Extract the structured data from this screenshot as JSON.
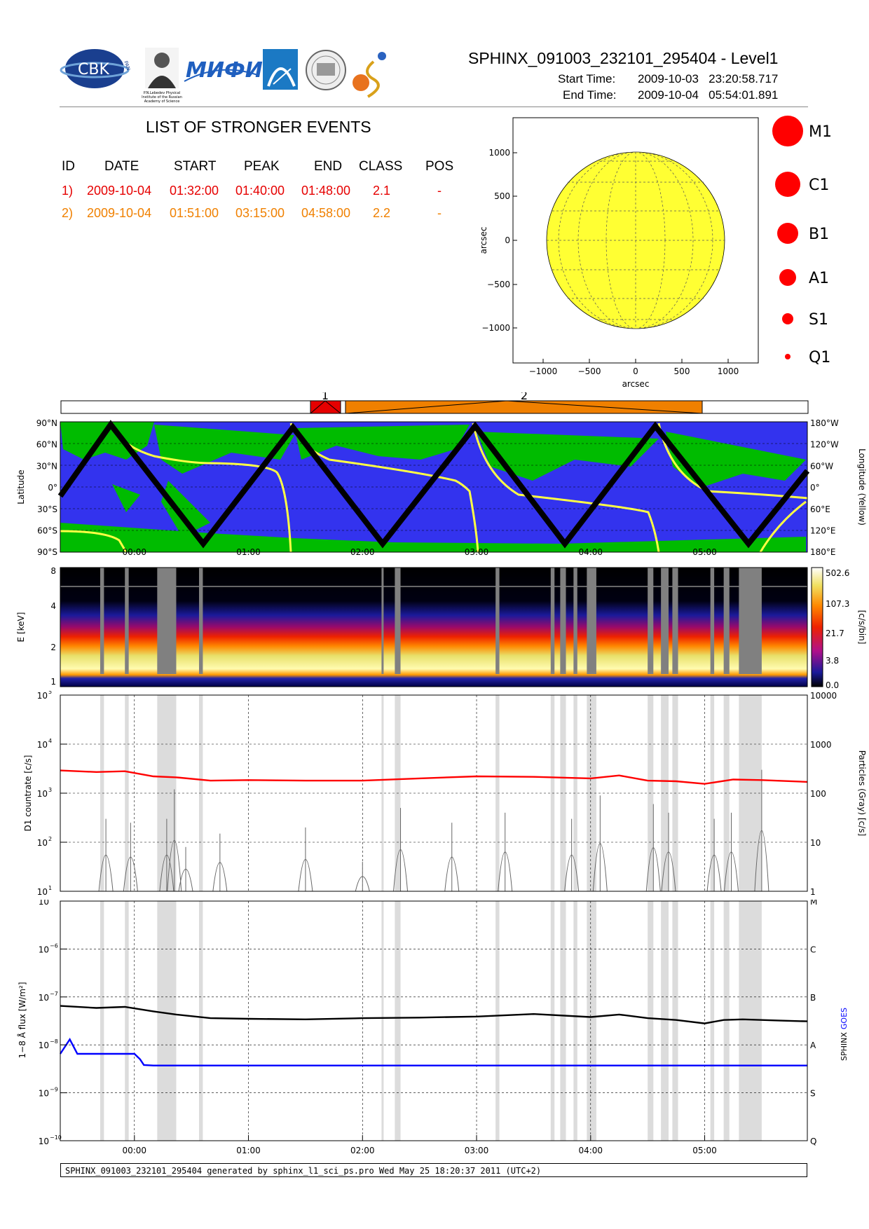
{
  "header": {
    "title": "SPHINX_091003_232101_295404 - Level1",
    "start_label": "Start Time:",
    "start_value": "2009-10-03   23:20:58.717",
    "end_label": "End Time:",
    "end_value": "2009-10-04   05:54:01.891"
  },
  "logos": {
    "cbk_text": "CBK",
    "cbk_sub": "PAN",
    "lebedev_caption": "P.N.Lebedev Physical Institute of the Russian Academy of Science",
    "mifi_text": "МИФИ"
  },
  "events": {
    "title": "LIST OF STRONGER EVENTS",
    "columns": [
      "ID",
      "DATE",
      "START",
      "PEAK",
      "END",
      "CLASS",
      "POS"
    ],
    "rows": [
      {
        "id": "1)",
        "date": "2009-10-04",
        "start": "01:32:00",
        "peak": "01:40:00",
        "end": "01:48:00",
        "class": "2.1",
        "pos": "-",
        "color": "#e60000"
      },
      {
        "id": "2)",
        "date": "2009-10-04",
        "start": "01:51:00",
        "peak": "03:15:00",
        "end": "04:58:00",
        "class": "2.2",
        "pos": "-",
        "color": "#f08000"
      }
    ]
  },
  "sun_map": {
    "xlabel": "arcsec",
    "ylabel": "arcsec",
    "xticks": [
      "−1000",
      "−500",
      "0",
      "500",
      "1000"
    ],
    "yticks": [
      "1000",
      "500",
      "0",
      "−500",
      "−1000"
    ],
    "disk_color": "#ffff33"
  },
  "size_legend": {
    "items": [
      "M1",
      "C1",
      "B1",
      "A1",
      "S1",
      "Q1"
    ],
    "color": "#ff0000"
  },
  "event_bar": {
    "labels": [
      "1",
      "2"
    ],
    "colors": [
      "#e60000",
      "#f08000"
    ]
  },
  "orbit_panel": {
    "ylabel_left": "Latitude",
    "ylabel_right": "Longitude (Yellow)",
    "yticks_left": [
      "90°N",
      "60°N",
      "30°N",
      "0°",
      "30°S",
      "60°S",
      "90°S"
    ],
    "yticks_right": [
      "180°W",
      "120°W",
      "60°W",
      "0°",
      "60°E",
      "120°E",
      "180°E"
    ],
    "colors": {
      "background": "#3333ee",
      "saa": "#00bb00",
      "longitude": "#ffff44",
      "track": "#000000"
    }
  },
  "spectrogram": {
    "ylabel": "E [keV]",
    "yticks": [
      "8",
      "4",
      "2",
      "1"
    ],
    "colorbar_label": "[c/s/bin]",
    "colorbar_ticks": [
      "502.6",
      "107.3",
      "21.7",
      "3.8",
      "0.0"
    ]
  },
  "d1_panel": {
    "ylabel_left": "D1 countrate [c/s]",
    "ylabel_right": "Particles (Gray) [c/s]",
    "yticks_left": [
      "10",
      "10",
      "10",
      "10",
      "10"
    ],
    "yticks_left_exp": [
      "5",
      "4",
      "3",
      "2",
      "1"
    ],
    "yticks_right": [
      "10000",
      "1000",
      "100",
      "10",
      "1"
    ]
  },
  "flux_panel": {
    "ylabel_left": "1−8 Å flux [W/m²]",
    "ylabel_right_a": "SPHINX",
    "ylabel_right_b": "GOES",
    "yticks_left_exp": [
      "−5",
      "−6",
      "−7",
      "−8",
      "−9",
      "−10"
    ],
    "class_labels": [
      "M",
      "C",
      "B",
      "A",
      "S",
      "Q"
    ]
  },
  "time_axis": {
    "ticks": [
      "00:00",
      "01:00",
      "02:00",
      "03:00",
      "04:00",
      "05:00"
    ]
  },
  "chart_data": {
    "type": "line",
    "x_unit": "UT hours",
    "x_range": [
      "2009-10-03 23:20:58",
      "2009-10-04 05:54:01"
    ],
    "particle_gaps": [
      [
        "23:42",
        "23:44"
      ],
      [
        "23:55",
        "23:57"
      ],
      [
        "00:12",
        "00:22"
      ],
      [
        "00:34",
        "00:36"
      ],
      [
        "02:10",
        "02:11"
      ],
      [
        "02:17",
        "02:20"
      ],
      [
        "03:10",
        "03:12"
      ],
      [
        "03:39",
        "03:41"
      ],
      [
        "03:44",
        "03:47"
      ],
      [
        "03:51",
        "03:53"
      ],
      [
        "03:58",
        "04:03"
      ],
      [
        "04:30",
        "04:33"
      ],
      [
        "04:37",
        "04:41"
      ],
      [
        "04:43",
        "04:46"
      ],
      [
        "05:03",
        "05:05"
      ],
      [
        "05:10",
        "05:13"
      ],
      [
        "05:18",
        "05:30"
      ]
    ],
    "series": [
      {
        "name": "SPHINX",
        "unit": "W/m^2",
        "color": "#000000",
        "x": [
          "23:21",
          "23:40",
          "23:55",
          "00:10",
          "00:22",
          "00:40",
          "01:00",
          "01:30",
          "02:00",
          "02:30",
          "03:00",
          "03:30",
          "04:00",
          "04:15",
          "04:30",
          "04:45",
          "05:00",
          "05:10",
          "05:20",
          "05:40",
          "05:54"
        ],
        "y": [
          6.5e-08,
          5.9e-08,
          6.2e-08,
          5e-08,
          4.3e-08,
          3.6e-08,
          3.5e-08,
          3.4e-08,
          3.6e-08,
          3.7e-08,
          3.9e-08,
          4.4e-08,
          3.8e-08,
          4.3e-08,
          3.6e-08,
          3.3e-08,
          2.8e-08,
          3.3e-08,
          3.4e-08,
          3.2e-08,
          3.1e-08
        ]
      },
      {
        "name": "GOES",
        "unit": "W/m^2",
        "color": "#0000ff",
        "x": [
          "23:21",
          "23:26",
          "23:30",
          "23:50",
          "00:00",
          "00:03",
          "00:05",
          "00:10",
          "05:54"
        ],
        "y": [
          6.5e-09,
          1.3e-08,
          6.5e-09,
          6.5e-09,
          6.5e-09,
          5e-09,
          3.8e-09,
          3.7e-09,
          3.7e-09
        ]
      },
      {
        "name": "D1",
        "unit": "c/s",
        "color": "#ff0000",
        "x": [
          "23:21",
          "23:40",
          "23:55",
          "00:10",
          "00:22",
          "00:40",
          "01:00",
          "01:30",
          "02:00",
          "02:30",
          "03:00",
          "03:30",
          "04:00",
          "04:15",
          "04:30",
          "04:45",
          "05:00",
          "05:15",
          "05:30",
          "05:54"
        ],
        "y": [
          2900,
          2700,
          2800,
          2200,
          2100,
          1800,
          1850,
          1800,
          1800,
          2000,
          2200,
          2150,
          2000,
          2300,
          1800,
          1750,
          1550,
          1900,
          1850,
          1700
        ]
      },
      {
        "name": "Particles",
        "unit": "c/s",
        "color": "#666666",
        "x": [
          "23:45",
          "23:58",
          "00:17",
          "00:21",
          "00:27",
          "00:45",
          "01:30",
          "02:00",
          "02:20",
          "02:47",
          "03:15",
          "03:50",
          "04:05",
          "04:33",
          "04:41",
          "05:05",
          "05:14",
          "05:30"
        ],
        "y": [
          30,
          25,
          30,
          120,
          8,
          15,
          20,
          4,
          50,
          25,
          40,
          30,
          90,
          60,
          40,
          30,
          40,
          300
        ]
      }
    ]
  }
}
